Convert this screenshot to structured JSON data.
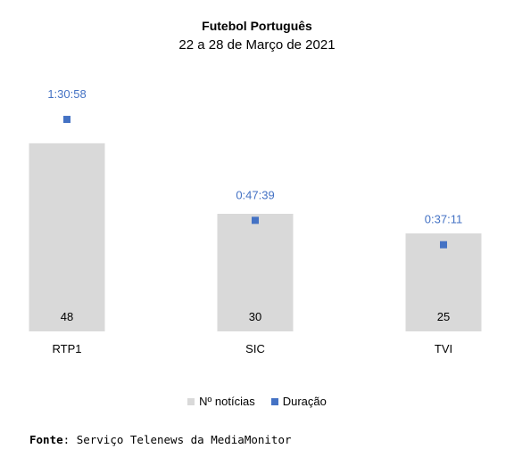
{
  "chart_data": {
    "type": "bar",
    "title": "Futebol Português",
    "subtitle": "22 a 28 de Março de 2021",
    "categories": [
      "RTP1",
      "SIC",
      "TVI"
    ],
    "series": [
      {
        "name": "Nº notícias",
        "type": "bar",
        "color": "#d9d9d9",
        "values": [
          48,
          30,
          25
        ]
      },
      {
        "name": "Duração",
        "type": "scatter",
        "color": "#4472c4",
        "values": [
          "1:30:58",
          "0:47:39",
          "0:37:11"
        ],
        "values_seconds": [
          5458,
          2859,
          2231
        ]
      }
    ],
    "legend": "bottom",
    "grid": false
  },
  "source": {
    "label": "Fonte",
    "text": ": Serviço Telenews da MediaMonitor"
  }
}
